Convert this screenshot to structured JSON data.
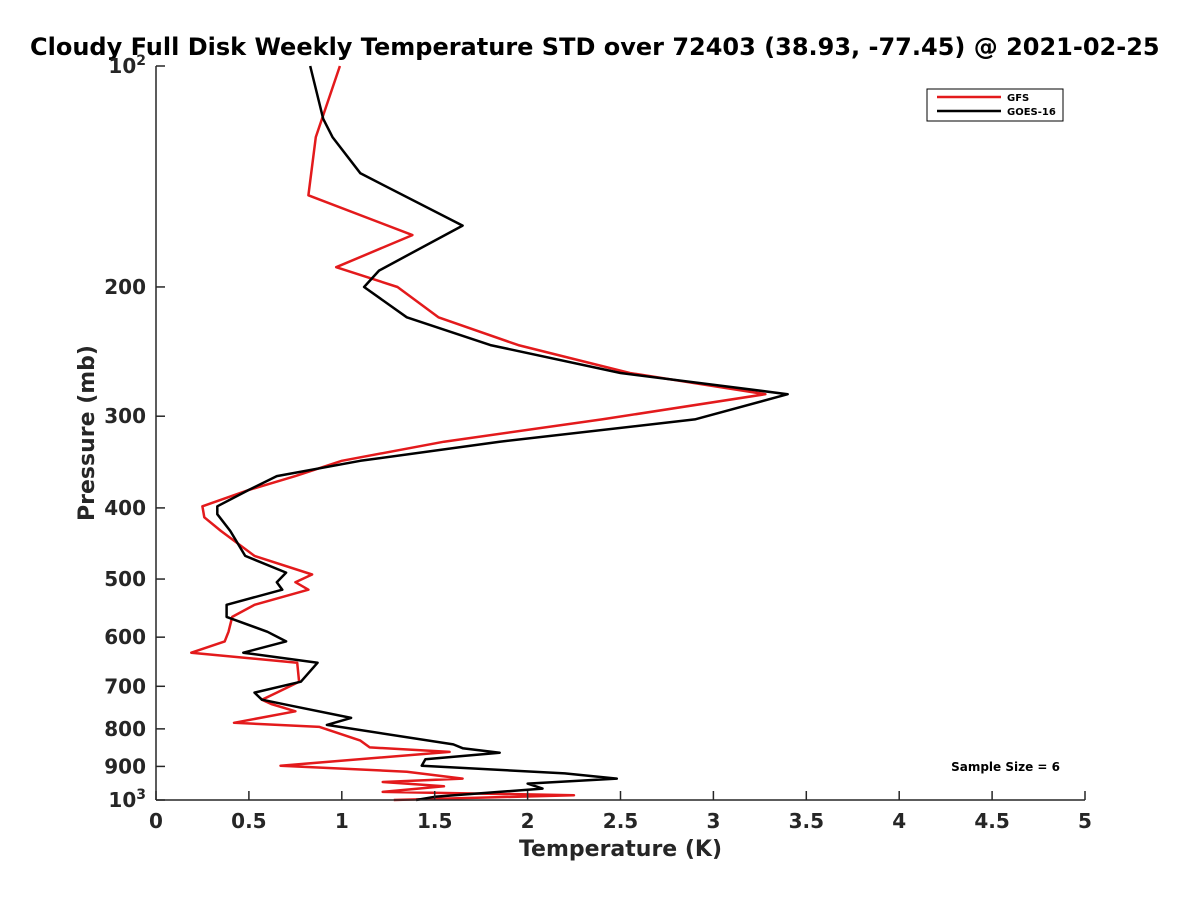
{
  "chart_data": {
    "type": "line",
    "title": "Cloudy Full Disk Weekly Temperature STD over 72403 (38.93, -77.45) @ 2021-02-25",
    "xlabel": "Temperature (K)",
    "ylabel": "Pressure (mb)",
    "xlim": [
      0,
      5
    ],
    "ylim": [
      100,
      1000
    ],
    "y_scale": "log",
    "y_reversed": true,
    "x_ticks": [
      0,
      0.5,
      1,
      1.5,
      2,
      2.5,
      3,
      3.5,
      4,
      4.5,
      5
    ],
    "x_tick_labels": [
      "0",
      "0.5",
      "1",
      "1.5",
      "2",
      "2.5",
      "3",
      "3.5",
      "4",
      "4.5",
      "5"
    ],
    "y_ticks": [
      100,
      200,
      300,
      400,
      500,
      600,
      700,
      800,
      900,
      1000
    ],
    "y_tick_labels": [
      {
        "base": "10",
        "exp": "2"
      },
      {
        "base": "200",
        "exp": ""
      },
      {
        "base": "300",
        "exp": ""
      },
      {
        "base": "400",
        "exp": ""
      },
      {
        "base": "500",
        "exp": ""
      },
      {
        "base": "600",
        "exp": ""
      },
      {
        "base": "700",
        "exp": ""
      },
      {
        "base": "800",
        "exp": ""
      },
      {
        "base": "900",
        "exp": ""
      },
      {
        "base": "10",
        "exp": "3"
      }
    ],
    "grid": false,
    "legend_position": "top-right",
    "annotation": "Sample Size = 6",
    "series": [
      {
        "name": "GFS",
        "color": "#e31a1c",
        "points": [
          [
            0.99,
            100
          ],
          [
            0.86,
            125
          ],
          [
            0.82,
            150
          ],
          [
            1.38,
            170
          ],
          [
            0.97,
            188
          ],
          [
            1.3,
            200
          ],
          [
            1.52,
            220
          ],
          [
            1.95,
            240
          ],
          [
            2.55,
            262
          ],
          [
            3.28,
            280
          ],
          [
            2.4,
            303
          ],
          [
            1.55,
            325
          ],
          [
            1.0,
            345
          ],
          [
            0.75,
            362
          ],
          [
            0.5,
            378
          ],
          [
            0.25,
            398
          ],
          [
            0.26,
            412
          ],
          [
            0.35,
            430
          ],
          [
            0.53,
            465
          ],
          [
            0.84,
            493
          ],
          [
            0.75,
            505
          ],
          [
            0.82,
            517
          ],
          [
            0.53,
            542
          ],
          [
            0.41,
            563
          ],
          [
            0.39,
            590
          ],
          [
            0.37,
            608
          ],
          [
            0.19,
            630
          ],
          [
            0.76,
            650
          ],
          [
            0.77,
            690
          ],
          [
            0.65,
            714
          ],
          [
            0.57,
            730
          ],
          [
            0.62,
            740
          ],
          [
            0.75,
            757
          ],
          [
            0.42,
            785
          ],
          [
            0.88,
            795
          ],
          [
            1.1,
            830
          ],
          [
            1.15,
            848
          ],
          [
            1.58,
            860
          ],
          [
            0.67,
            898
          ],
          [
            1.35,
            915
          ],
          [
            1.65,
            935
          ],
          [
            1.22,
            945
          ],
          [
            1.55,
            958
          ],
          [
            1.22,
            975
          ],
          [
            2.25,
            985
          ],
          [
            1.28,
            1000
          ]
        ]
      },
      {
        "name": "GOES-16",
        "color": "#000000",
        "points": [
          [
            0.83,
            100
          ],
          [
            0.9,
            118
          ],
          [
            0.95,
            125
          ],
          [
            1.1,
            140
          ],
          [
            1.65,
            165
          ],
          [
            1.2,
            190
          ],
          [
            1.12,
            200
          ],
          [
            1.35,
            220
          ],
          [
            1.8,
            240
          ],
          [
            2.5,
            262
          ],
          [
            3.4,
            280
          ],
          [
            2.9,
            303
          ],
          [
            1.85,
            325
          ],
          [
            1.1,
            345
          ],
          [
            0.65,
            362
          ],
          [
            0.5,
            378
          ],
          [
            0.33,
            398
          ],
          [
            0.33,
            408
          ],
          [
            0.4,
            430
          ],
          [
            0.48,
            465
          ],
          [
            0.7,
            490
          ],
          [
            0.65,
            505
          ],
          [
            0.68,
            517
          ],
          [
            0.38,
            542
          ],
          [
            0.38,
            563
          ],
          [
            0.6,
            590
          ],
          [
            0.7,
            608
          ],
          [
            0.47,
            630
          ],
          [
            0.87,
            650
          ],
          [
            0.78,
            690
          ],
          [
            0.53,
            714
          ],
          [
            0.57,
            730
          ],
          [
            0.74,
            745
          ],
          [
            1.05,
            773
          ],
          [
            0.92,
            790
          ],
          [
            1.6,
            840
          ],
          [
            1.65,
            850
          ],
          [
            1.85,
            862
          ],
          [
            1.45,
            880
          ],
          [
            1.43,
            898
          ],
          [
            2.2,
            920
          ],
          [
            2.48,
            935
          ],
          [
            2.0,
            950
          ],
          [
            2.08,
            965
          ],
          [
            1.5,
            990
          ],
          [
            1.4,
            1000
          ]
        ]
      }
    ]
  }
}
